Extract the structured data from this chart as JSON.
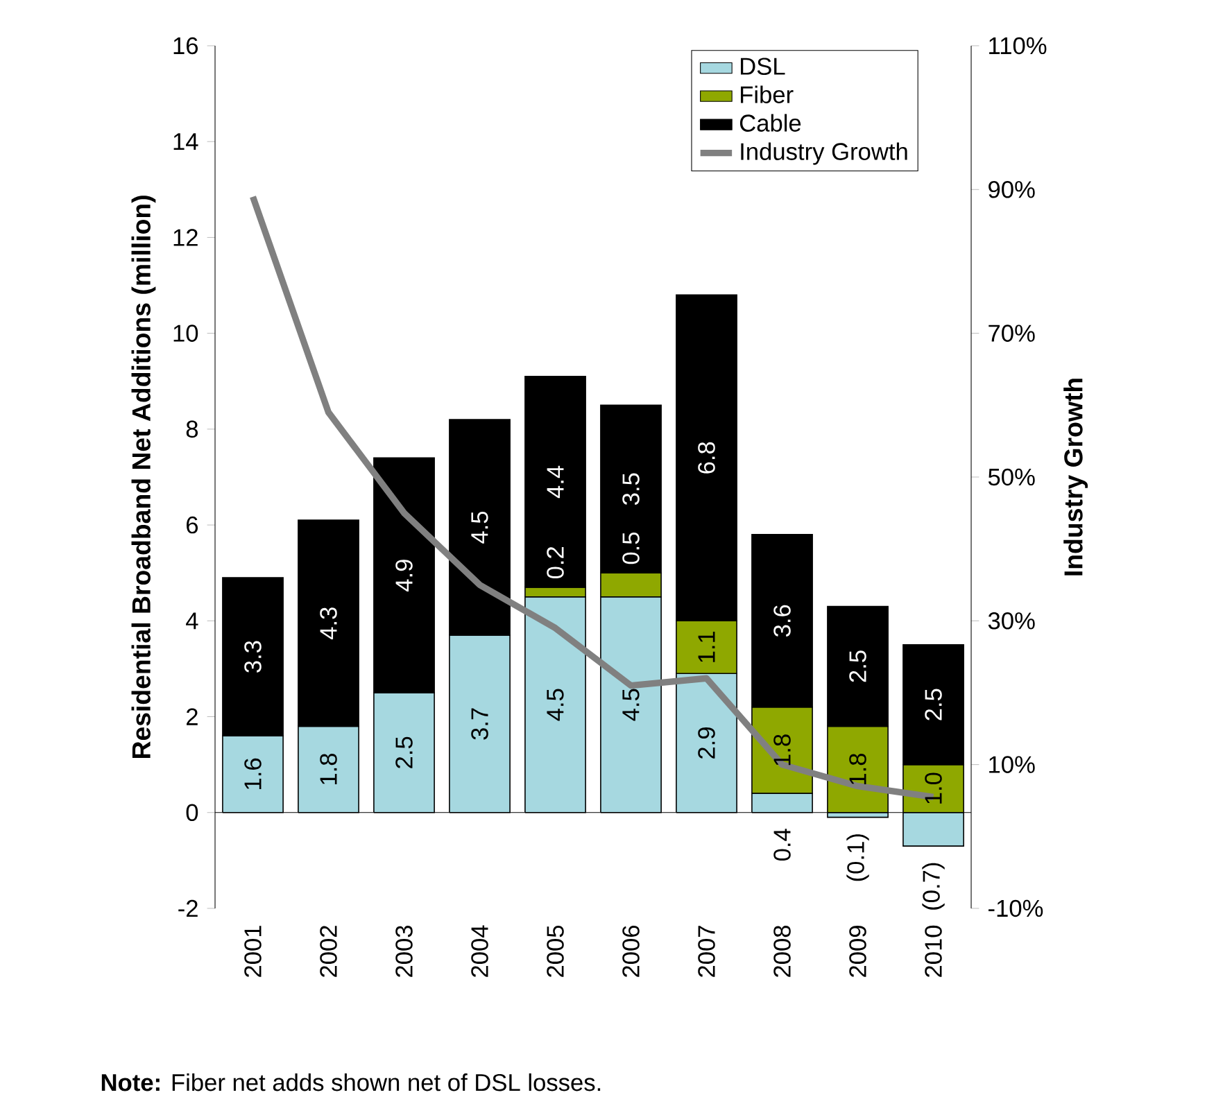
{
  "chart_data": {
    "type": "bar",
    "stacked": true,
    "categories": [
      "2001",
      "2002",
      "2003",
      "2004",
      "2005",
      "2006",
      "2007",
      "2008",
      "2009",
      "2010"
    ],
    "ylabel": "Residential Broadband Net Additions (million)",
    "y2label": "Industry Growth",
    "ylim": [
      -2,
      16
    ],
    "yticks": [
      -2,
      0,
      2,
      4,
      6,
      8,
      10,
      12,
      14,
      16
    ],
    "y2lim": [
      -10,
      110
    ],
    "y2ticks": [
      {
        "value": -10,
        "label": "-10%"
      },
      {
        "value": 10,
        "label": "10%"
      },
      {
        "value": 30,
        "label": "30%"
      },
      {
        "value": 50,
        "label": "50%"
      },
      {
        "value": 70,
        "label": "70%"
      },
      {
        "value": 90,
        "label": "90%"
      },
      {
        "value": 110,
        "label": "110%"
      }
    ],
    "legend": "top right",
    "series": [
      {
        "name": "DSL",
        "color": "#a6d8e0",
        "values": [
          1.6,
          1.8,
          2.5,
          3.7,
          4.5,
          4.5,
          2.9,
          0.4,
          -0.1,
          -0.7
        ],
        "value_labels": [
          "1.6",
          "1.8",
          "2.5",
          "3.7",
          "4.5",
          "4.5",
          "2.9",
          "0.4",
          "(0.1)",
          "(0.7)"
        ]
      },
      {
        "name": "Fiber",
        "color": "#8fa800",
        "values": [
          null,
          null,
          null,
          null,
          0.2,
          0.5,
          1.1,
          1.8,
          1.8,
          1.0
        ],
        "value_labels": [
          null,
          null,
          null,
          null,
          "0.2",
          "0.5",
          "1.1",
          "1.8",
          "1.8",
          "1.0"
        ]
      },
      {
        "name": "Cable",
        "color": "#000000",
        "values": [
          3.3,
          4.3,
          4.9,
          4.5,
          4.4,
          3.5,
          6.8,
          3.6,
          2.5,
          2.5
        ],
        "value_labels": [
          "3.3",
          "4.3",
          "4.9",
          "4.5",
          "4.4",
          "3.5",
          "6.8",
          "3.6",
          "2.5",
          "2.5"
        ]
      },
      {
        "name": "Industry Growth",
        "type": "line",
        "axis": "y2",
        "color": "#808080",
        "values": [
          89,
          59,
          45,
          35,
          29,
          21,
          22,
          10,
          7,
          5.5
        ]
      }
    ],
    "annotations": [
      "**Note:** Fiber net adds shown net of DSL losses."
    ]
  }
}
